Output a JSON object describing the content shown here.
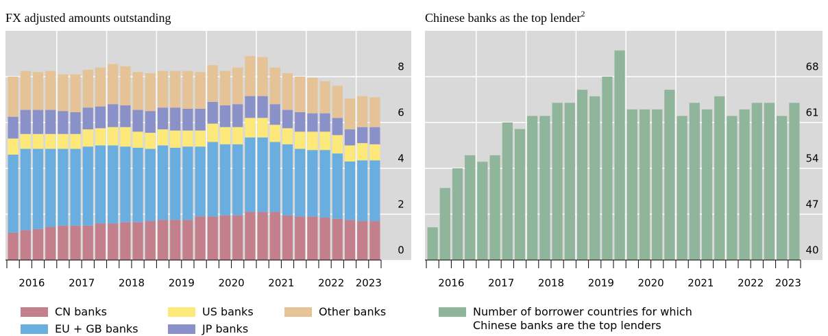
{
  "chart_data": [
    {
      "type": "stacked_bar",
      "title": "FX adjusted amounts outstanding",
      "categories": [
        null,
        null,
        null,
        null,
        null,
        null,
        null,
        null,
        null,
        null,
        null,
        null,
        null,
        null,
        null,
        null,
        null,
        null,
        null,
        null,
        null,
        null,
        null,
        null,
        null,
        null,
        null,
        null,
        null,
        null
      ],
      "year_labels": [
        "2016",
        "2017",
        "2018",
        "2019",
        "2020",
        "2021",
        "2022",
        "2023"
      ],
      "ylim": [
        0,
        10
      ],
      "yticks": [
        0,
        2,
        4,
        6,
        8
      ],
      "grid": true,
      "series": [
        {
          "name": "CN banks",
          "color": "#c47f8c",
          "values": [
            1.2,
            1.3,
            1.35,
            1.45,
            1.5,
            1.5,
            1.5,
            1.6,
            1.6,
            1.65,
            1.65,
            1.7,
            1.75,
            1.75,
            1.75,
            1.9,
            1.9,
            1.95,
            1.95,
            2.1,
            2.1,
            2.1,
            1.95,
            1.9,
            1.9,
            1.85,
            1.8,
            1.75,
            1.7,
            1.7
          ]
        },
        {
          "name": "EU + GB banks",
          "color": "#6aaee0",
          "values": [
            3.4,
            3.55,
            3.5,
            3.4,
            3.35,
            3.35,
            3.45,
            3.4,
            3.4,
            3.3,
            3.25,
            3.15,
            3.25,
            3.15,
            3.2,
            3.05,
            3.25,
            3.1,
            3.1,
            3.25,
            3.25,
            3.05,
            3.1,
            2.95,
            2.9,
            2.95,
            2.85,
            2.55,
            2.65,
            2.65
          ]
        },
        {
          "name": "US banks",
          "color": "#fde97a",
          "values": [
            0.7,
            0.65,
            0.65,
            0.65,
            0.65,
            0.65,
            0.75,
            0.75,
            0.8,
            0.85,
            0.7,
            0.7,
            0.7,
            0.75,
            0.7,
            0.7,
            0.8,
            0.75,
            0.75,
            0.85,
            0.85,
            0.75,
            0.7,
            0.75,
            0.8,
            0.8,
            0.8,
            0.7,
            0.75,
            0.7
          ]
        },
        {
          "name": "JP banks",
          "color": "#8a91c9",
          "values": [
            0.95,
            1.05,
            1.05,
            1.05,
            1.0,
            0.95,
            0.95,
            0.95,
            1.0,
            0.95,
            0.95,
            0.95,
            0.95,
            1.0,
            0.95,
            0.95,
            0.95,
            0.95,
            1.0,
            0.95,
            0.95,
            0.9,
            0.8,
            0.85,
            0.8,
            0.8,
            0.75,
            0.7,
            0.7,
            0.75
          ]
        },
        {
          "name": "Other banks",
          "color": "#e5c397",
          "values": [
            1.75,
            1.7,
            1.65,
            1.7,
            1.6,
            1.65,
            1.65,
            1.7,
            1.75,
            1.7,
            1.65,
            1.65,
            1.6,
            1.6,
            1.65,
            1.6,
            1.6,
            1.5,
            1.6,
            1.75,
            1.7,
            1.6,
            1.6,
            1.55,
            1.55,
            1.4,
            1.4,
            1.35,
            1.35,
            1.3
          ]
        }
      ]
    },
    {
      "type": "bar",
      "title": "Chinese banks as the top lender",
      "title_note": "2",
      "categories": [
        null,
        null,
        null,
        null,
        null,
        null,
        null,
        null,
        null,
        null,
        null,
        null,
        null,
        null,
        null,
        null,
        null,
        null,
        null,
        null,
        null,
        null,
        null,
        null,
        null,
        null,
        null,
        null,
        null,
        null
      ],
      "year_labels": [
        "2016",
        "2017",
        "2018",
        "2019",
        "2020",
        "2021",
        "2022",
        "2023"
      ],
      "ylim": [
        40,
        75
      ],
      "yticks": [
        40,
        47,
        54,
        61,
        68
      ],
      "grid": true,
      "series": [
        {
          "name": "Number of borrower countries for which Chinese banks are the top lenders",
          "color": "#8fb59a",
          "values": [
            45,
            51,
            54,
            56,
            55,
            56,
            61,
            60,
            62,
            62,
            64,
            64,
            66,
            65,
            68,
            72,
            63,
            63,
            63,
            66,
            62,
            64,
            63,
            65,
            62,
            63,
            64,
            64,
            62,
            64
          ]
        }
      ]
    }
  ]
}
